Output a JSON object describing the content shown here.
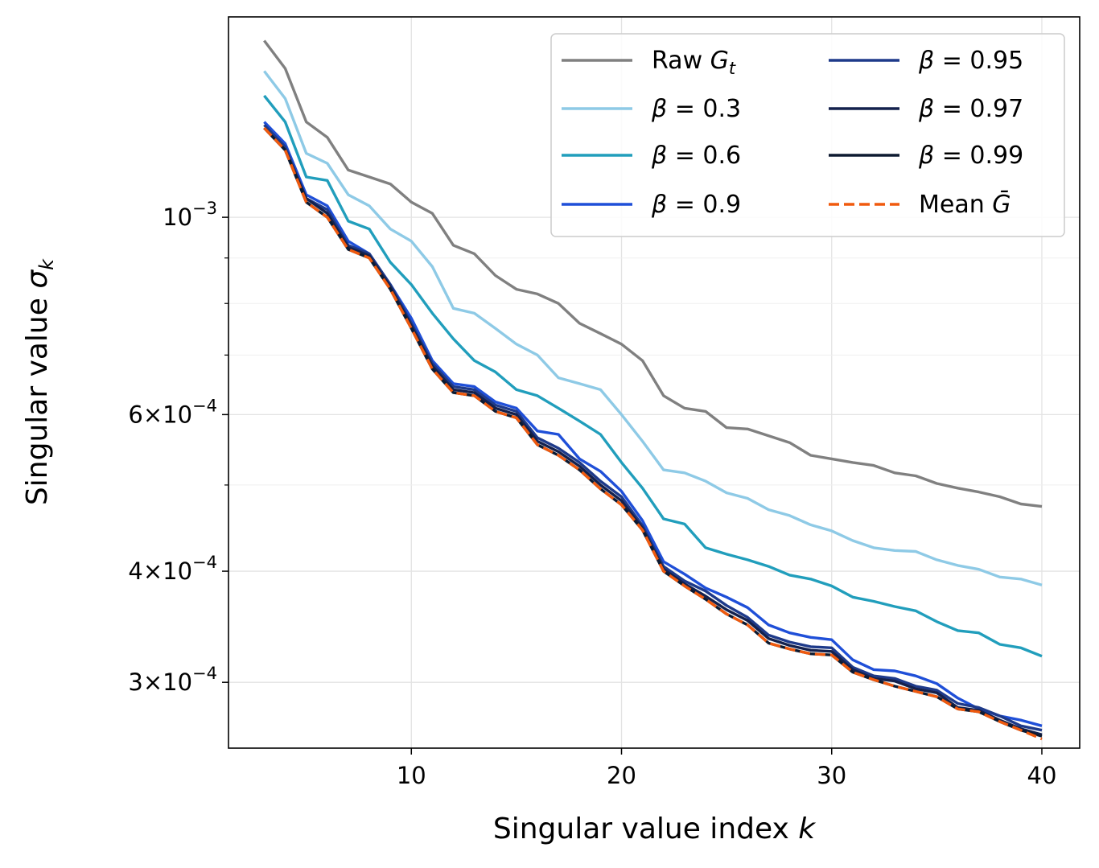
{
  "chart_data": {
    "type": "line",
    "xlabel": "Singular value index k",
    "ylabel": "Singular value σk",
    "xlim": [
      1.3,
      41.8
    ],
    "ylim": [
      0.000253,
      0.00168
    ],
    "yscale": "log",
    "grid": true,
    "legend_position": "top-right",
    "legend_columns": 2,
    "x_ticks": [
      10,
      20,
      30,
      40
    ],
    "y_ticks": [
      {
        "value": 0.001,
        "mantissa": "",
        "exponent": "−3"
      },
      {
        "value": 0.0006,
        "mantissa": "6",
        "exponent": "−4"
      },
      {
        "value": 0.0004,
        "mantissa": "4",
        "exponent": "−4"
      },
      {
        "value": 0.0003,
        "mantissa": "3",
        "exponent": "−4"
      }
    ],
    "y_minor_ticks": [
      0.0005,
      0.0007,
      0.0008,
      0.0009
    ],
    "x": [
      3,
      4,
      5,
      6,
      7,
      8,
      9,
      10,
      11,
      12,
      13,
      14,
      15,
      16,
      17,
      18,
      19,
      20,
      21,
      22,
      23,
      24,
      25,
      26,
      27,
      28,
      29,
      30,
      31,
      32,
      33,
      34,
      35,
      36,
      37,
      38,
      39,
      40
    ],
    "series": [
      {
        "name": "Raw G_t",
        "color": "#808080",
        "dash": "solid",
        "values": [
          0.00158,
          0.00147,
          0.00128,
          0.00123,
          0.00113,
          0.00111,
          0.00109,
          0.00104,
          0.00101,
          0.00093,
          0.00091,
          0.00086,
          0.00083,
          0.00082,
          0.0008,
          0.00076,
          0.00074,
          0.00072,
          0.00069,
          0.00063,
          0.00061,
          0.000605,
          0.00058,
          0.000578,
          0.000568,
          0.000558,
          0.00054,
          0.000535,
          0.00053,
          0.000526,
          0.000516,
          0.000512,
          0.000502,
          0.000496,
          0.000491,
          0.000485,
          0.000476,
          0.000473
        ]
      },
      {
        "name": "β = 0.3",
        "color": "#8ecae6",
        "dash": "solid",
        "values": [
          0.00146,
          0.00136,
          0.00118,
          0.00115,
          0.00106,
          0.00103,
          0.00097,
          0.00094,
          0.00088,
          0.00079,
          0.00078,
          0.00075,
          0.00072,
          0.0007,
          0.00066,
          0.00065,
          0.00064,
          0.0006,
          0.00056,
          0.00052,
          0.000516,
          0.000505,
          0.00049,
          0.000483,
          0.000469,
          0.000462,
          0.000451,
          0.000444,
          0.000433,
          0.000425,
          0.000422,
          0.000421,
          0.000412,
          0.000406,
          0.000402,
          0.000394,
          0.000392,
          0.000386
        ]
      },
      {
        "name": "β = 0.6",
        "color": "#219ebc",
        "dash": "solid",
        "values": [
          0.00137,
          0.00128,
          0.00111,
          0.0011,
          0.00099,
          0.00097,
          0.00089,
          0.00084,
          0.00078,
          0.00073,
          0.00069,
          0.00067,
          0.00064,
          0.00063,
          0.00061,
          0.00059,
          0.00057,
          0.00053,
          0.000496,
          0.000458,
          0.000452,
          0.000425,
          0.000418,
          0.000412,
          0.000405,
          0.000396,
          0.000392,
          0.000385,
          0.000374,
          0.00037,
          0.000365,
          0.000361,
          0.000351,
          0.000343,
          0.000341,
          0.000331,
          0.000328,
          0.000321
        ]
      },
      {
        "name": "β = 0.9",
        "color": "#1f4fd8",
        "dash": "solid",
        "values": [
          0.00128,
          0.00121,
          0.00106,
          0.00103,
          0.00094,
          0.00091,
          0.00084,
          0.00077,
          0.00069,
          0.00065,
          0.000645,
          0.00062,
          0.00061,
          0.000575,
          0.00057,
          0.000535,
          0.000518,
          0.000492,
          0.000456,
          0.00041,
          0.000397,
          0.000383,
          0.000374,
          0.000364,
          0.000348,
          0.000341,
          0.000337,
          0.000335,
          0.000318,
          0.00031,
          0.000309,
          0.000305,
          0.000299,
          0.000288,
          0.00028,
          0.000275,
          0.000272,
          0.000268
        ]
      },
      {
        "name": "β = 0.95",
        "color": "#1e3a8a",
        "dash": "solid",
        "values": [
          0.00127,
          0.0012,
          0.00105,
          0.00102,
          0.00093,
          0.00091,
          0.00084,
          0.00076,
          0.000685,
          0.000645,
          0.00064,
          0.000615,
          0.000605,
          0.000565,
          0.00055,
          0.00053,
          0.000505,
          0.000485,
          0.00045,
          0.000405,
          0.00039,
          0.00038,
          0.000366,
          0.000355,
          0.000339,
          0.000333,
          0.000329,
          0.000328,
          0.000312,
          0.000305,
          0.000303,
          0.000297,
          0.000294,
          0.000284,
          0.000281,
          0.000275,
          0.000268,
          0.000265
        ]
      },
      {
        "name": "β = 0.97",
        "color": "#14214d",
        "dash": "solid",
        "values": [
          0.00126,
          0.00119,
          0.00105,
          0.00101,
          0.000925,
          0.000905,
          0.000835,
          0.000755,
          0.00068,
          0.00064,
          0.000635,
          0.00061,
          0.0006,
          0.00056,
          0.000545,
          0.000525,
          0.0005,
          0.00048,
          0.000447,
          0.000402,
          0.000387,
          0.000375,
          0.000362,
          0.000352,
          0.000336,
          0.00033,
          0.000326,
          0.000325,
          0.00031,
          0.000303,
          0.000301,
          0.000295,
          0.000292,
          0.000281,
          0.000279,
          0.000272,
          0.000266,
          0.000262
        ]
      },
      {
        "name": "β = 0.99",
        "color": "#0d1a30",
        "dash": "solid",
        "values": [
          0.00126,
          0.00119,
          0.00104,
          0.001,
          0.00092,
          0.0009,
          0.00083,
          0.00075,
          0.000675,
          0.000635,
          0.00063,
          0.000605,
          0.000595,
          0.000555,
          0.00054,
          0.00052,
          0.000495,
          0.000475,
          0.000445,
          0.0004,
          0.000385,
          0.000372,
          0.000358,
          0.000348,
          0.000332,
          0.000327,
          0.000323,
          0.000322,
          0.000308,
          0.000302,
          0.000297,
          0.000293,
          0.000289,
          0.00028,
          0.000278,
          0.000271,
          0.000265,
          0.000261
        ]
      },
      {
        "name": "Mean Ḡ",
        "color": "#f05a0e",
        "dash": "dashed",
        "values": [
          0.00126,
          0.00119,
          0.00104,
          0.001,
          0.00092,
          0.0009,
          0.00083,
          0.00075,
          0.000675,
          0.000635,
          0.00063,
          0.000605,
          0.000595,
          0.000555,
          0.00054,
          0.00052,
          0.000495,
          0.000475,
          0.000445,
          0.0004,
          0.000385,
          0.000372,
          0.000358,
          0.000348,
          0.000332,
          0.000327,
          0.000323,
          0.000322,
          0.000308,
          0.000302,
          0.000297,
          0.000293,
          0.000289,
          0.00028,
          0.000278,
          0.000271,
          0.000265,
          0.000259
        ]
      }
    ]
  }
}
